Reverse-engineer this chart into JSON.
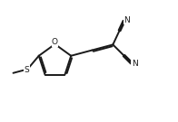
{
  "bg_color": "#ffffff",
  "line_color": "#1a1a1a",
  "line_width": 1.4,
  "font_size": 6.5,
  "figsize": [
    1.96,
    1.35
  ],
  "dpi": 100,
  "xlim": [
    0.0,
    8.5
  ],
  "ylim": [
    0.5,
    5.5
  ]
}
